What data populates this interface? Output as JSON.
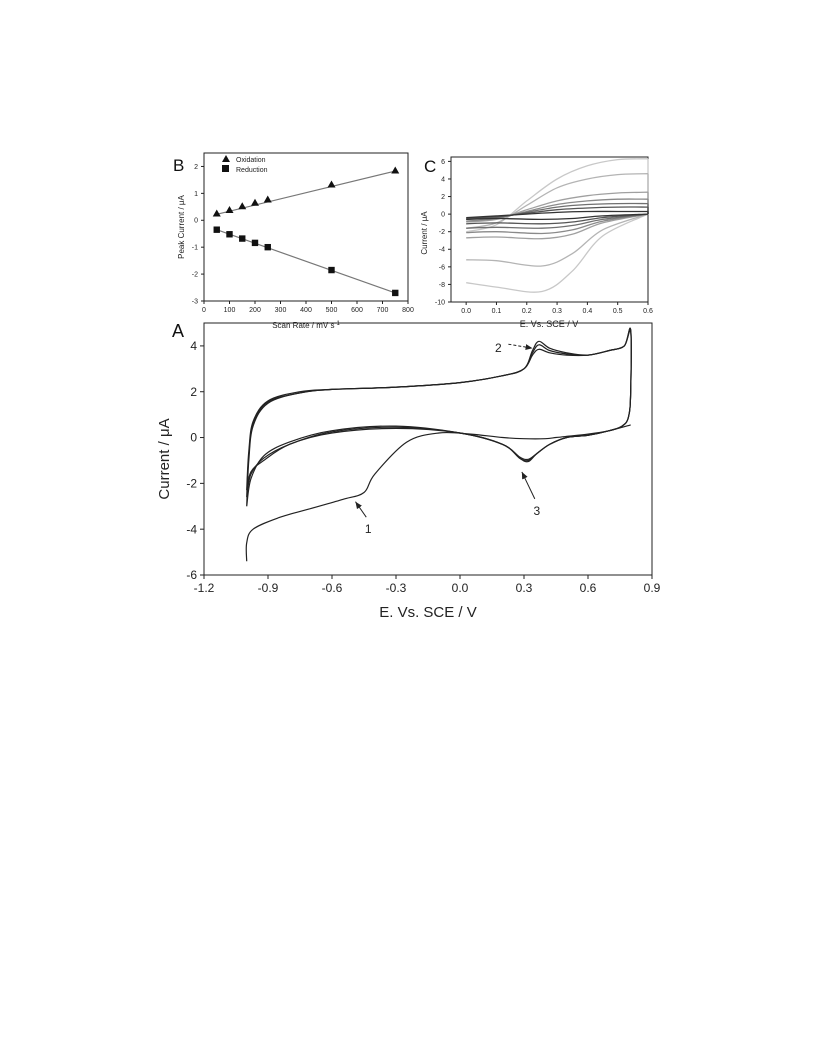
{
  "chart_data": [
    {
      "panel": "B",
      "type": "scatter",
      "xlabel": "Scan Rate / mV s",
      "xlabel_sup": "-1",
      "ylabel": "Peak Current  /  μA",
      "xlim": [
        0,
        800
      ],
      "ylim": [
        -3,
        2.5
      ],
      "xticks": [
        0,
        100,
        200,
        300,
        400,
        500,
        600,
        700,
        800
      ],
      "yticks": [
        -3,
        -2,
        -1,
        0,
        1,
        2
      ],
      "legend_position": "top-left",
      "series": [
        {
          "name": "Oxidation",
          "marker": "triangle",
          "x": [
            50,
            100,
            150,
            200,
            250,
            500,
            750
          ],
          "y": [
            0.25,
            0.38,
            0.52,
            0.65,
            0.77,
            1.33,
            1.85
          ],
          "fit": [
            [
              50,
              0.22
            ],
            [
              750,
              1.83
            ]
          ]
        },
        {
          "name": "Reduction",
          "marker": "square",
          "x": [
            50,
            100,
            150,
            200,
            250,
            500,
            750
          ],
          "y": [
            -0.35,
            -0.52,
            -0.68,
            -0.84,
            -1.0,
            -1.85,
            -2.7
          ],
          "fit": [
            [
              50,
              -0.35
            ],
            [
              750,
              -2.7
            ]
          ]
        }
      ]
    },
    {
      "panel": "C",
      "type": "line",
      "xlabel": "E. Vs. SCE  /  V",
      "ylabel": "Current  /  μA",
      "xlim": [
        -0.05,
        0.6
      ],
      "ylim": [
        -10,
        6.5
      ],
      "xticks": [
        "0.0",
        "0.1",
        "0.2",
        "0.3",
        "0.4",
        "0.5",
        "0.6"
      ],
      "yticks": [
        -10,
        -8,
        -6,
        -4,
        -2,
        0,
        2,
        4,
        6
      ],
      "curves": [
        {
          "color": "#333333",
          "top": 0.2,
          "bottom": -0.6,
          "upper_x": [
            0.0,
            0.1,
            0.2,
            0.3,
            0.4,
            0.5,
            0.6
          ],
          "upper_y": [
            -0.4,
            -0.2,
            0.0,
            0.2,
            0.3,
            0.3,
            0.3
          ],
          "lower_x": [
            0.6,
            0.45,
            0.35,
            0.25,
            0.1,
            0.0
          ],
          "lower_y": [
            0.0,
            -0.2,
            -0.5,
            -0.6,
            -0.5,
            -0.6
          ]
        },
        {
          "color": "#555555",
          "upper_x": [
            0.0,
            0.1,
            0.2,
            0.3,
            0.4,
            0.5,
            0.6
          ],
          "upper_y": [
            -0.5,
            -0.3,
            0.1,
            0.5,
            0.7,
            0.8,
            0.8
          ],
          "lower_x": [
            0.6,
            0.45,
            0.35,
            0.25,
            0.1,
            0.0
          ],
          "lower_y": [
            0.0,
            -0.4,
            -0.9,
            -1.1,
            -1.0,
            -1.1
          ]
        },
        {
          "color": "#707070",
          "upper_x": [
            0.0,
            0.1,
            0.2,
            0.3,
            0.4,
            0.5,
            0.6
          ],
          "upper_y": [
            -0.6,
            -0.4,
            0.2,
            0.8,
            1.1,
            1.2,
            1.2
          ],
          "lower_x": [
            0.6,
            0.45,
            0.35,
            0.25,
            0.1,
            0.0
          ],
          "lower_y": [
            0.0,
            -0.6,
            -1.3,
            -1.6,
            -1.5,
            -1.6
          ]
        },
        {
          "color": "#8a8a8a",
          "upper_x": [
            0.0,
            0.1,
            0.2,
            0.3,
            0.4,
            0.5,
            0.6
          ],
          "upper_y": [
            -0.8,
            -0.5,
            0.3,
            1.1,
            1.5,
            1.7,
            1.7
          ],
          "lower_x": [
            0.6,
            0.45,
            0.35,
            0.25,
            0.1,
            0.0
          ],
          "lower_y": [
            0.0,
            -0.8,
            -1.8,
            -2.2,
            -2.0,
            -2.1
          ]
        },
        {
          "color": "#a0a0a0",
          "upper_x": [
            0.0,
            0.1,
            0.2,
            0.3,
            0.4,
            0.5,
            0.6
          ],
          "upper_y": [
            -0.9,
            -0.6,
            0.5,
            1.5,
            2.1,
            2.4,
            2.5
          ],
          "lower_x": [
            0.6,
            0.45,
            0.35,
            0.25,
            0.1,
            0.0
          ],
          "lower_y": [
            0.0,
            -1.0,
            -2.3,
            -2.8,
            -2.6,
            -2.7
          ]
        },
        {
          "color": "#b4b4b4",
          "upper_x": [
            0.0,
            0.1,
            0.2,
            0.3,
            0.4,
            0.5,
            0.6
          ],
          "upper_y": [
            -1.6,
            -1.0,
            1.0,
            3.0,
            4.0,
            4.5,
            4.6
          ],
          "lower_x": [
            0.6,
            0.45,
            0.35,
            0.25,
            0.1,
            0.0
          ],
          "lower_y": [
            0.0,
            -1.8,
            -4.5,
            -5.9,
            -5.3,
            -5.2
          ]
        },
        {
          "color": "#c8c8c8",
          "upper_x": [
            0.0,
            0.1,
            0.2,
            0.3,
            0.4,
            0.5,
            0.6
          ],
          "upper_y": [
            -2.0,
            -1.2,
            1.5,
            4.0,
            5.5,
            6.2,
            6.3
          ],
          "lower_x": [
            0.6,
            0.45,
            0.35,
            0.25,
            0.1,
            0.0
          ],
          "lower_y": [
            0.0,
            -2.5,
            -6.5,
            -8.8,
            -8.3,
            -7.8
          ]
        }
      ]
    },
    {
      "panel": "A",
      "type": "line",
      "xlabel": "E. Vs. SCE  /  V",
      "ylabel": "Current  /  μA",
      "xlim": [
        -1.2,
        0.9
      ],
      "ylim": [
        -6,
        5
      ],
      "xticks": [
        "-1.2",
        "-0.9",
        "-0.6",
        "-0.3",
        "0.0",
        "0.3",
        "0.6",
        "0.9"
      ],
      "yticks": [
        -6,
        -4,
        -2,
        0,
        2,
        4
      ],
      "annotations": [
        {
          "text": "1",
          "x": -0.43,
          "y": -4.0,
          "arrow_to": [
            -0.49,
            -2.8
          ]
        },
        {
          "text": "2",
          "x": 0.18,
          "y": 3.9,
          "arrow_to": [
            0.34,
            3.9
          ]
        },
        {
          "text": "3",
          "x": 0.36,
          "y": -3.2,
          "arrow_to": [
            0.29,
            -1.5
          ]
        }
      ],
      "curves": [
        {
          "name": "cycle_1",
          "x": [
            -1.0,
            -0.99,
            -0.97,
            -0.9,
            -0.75,
            -0.6,
            -0.3,
            0.0,
            0.2,
            0.3,
            0.34,
            0.37,
            0.42,
            0.5,
            0.6,
            0.7,
            0.77,
            0.8,
            0.8,
            0.79,
            0.76,
            0.7,
            0.6,
            0.5,
            0.42,
            0.36,
            0.32,
            0.28,
            0.2,
            0.0,
            -0.3,
            -0.6,
            -0.8,
            -0.92,
            -0.98,
            -1.0
          ],
          "y": [
            -3.0,
            -1.0,
            0.5,
            1.5,
            1.95,
            2.1,
            2.2,
            2.4,
            2.7,
            3.0,
            3.6,
            3.85,
            3.7,
            3.6,
            3.6,
            3.8,
            4.0,
            4.7,
            2.0,
            0.9,
            0.5,
            0.3,
            0.1,
            0.0,
            -0.3,
            -0.7,
            -0.95,
            -0.85,
            -0.3,
            0.2,
            0.5,
            0.3,
            -0.2,
            -0.8,
            -1.8,
            -3.0
          ]
        },
        {
          "name": "cycle_2",
          "x": [
            -1.0,
            -0.99,
            -0.97,
            -0.9,
            -0.75,
            -0.6,
            -0.3,
            0.0,
            0.2,
            0.3,
            0.34,
            0.37,
            0.42,
            0.5,
            0.6,
            0.7,
            0.77,
            0.8,
            0.8,
            0.79,
            0.76,
            0.7,
            0.6,
            0.5,
            0.42,
            0.36,
            0.32,
            0.28,
            0.2,
            0.0,
            -0.3,
            -0.6,
            -0.8,
            -0.92,
            -0.98,
            -1.0
          ],
          "y": [
            -2.6,
            -0.8,
            0.6,
            1.55,
            1.95,
            2.1,
            2.2,
            2.4,
            2.7,
            3.0,
            3.7,
            4.05,
            3.8,
            3.65,
            3.6,
            3.8,
            4.0,
            4.6,
            2.0,
            0.9,
            0.5,
            0.3,
            0.1,
            0.0,
            -0.3,
            -0.7,
            -1.0,
            -0.9,
            -0.3,
            0.2,
            0.45,
            0.25,
            -0.3,
            -0.9,
            -1.6,
            -2.6
          ]
        },
        {
          "name": "cycle_3",
          "x": [
            -1.0,
            -0.99,
            -0.97,
            -0.9,
            -0.75,
            -0.6,
            -0.3,
            0.0,
            0.2,
            0.3,
            0.34,
            0.37,
            0.42,
            0.5,
            0.6,
            0.7,
            0.77,
            0.8,
            0.8,
            0.79,
            0.76,
            0.7,
            0.6,
            0.5,
            0.42,
            0.36,
            0.32,
            0.28,
            0.2,
            0.0,
            -0.3,
            -0.6,
            -0.8,
            -0.92,
            -0.98,
            -1.0
          ],
          "y": [
            -2.3,
            -0.6,
            0.7,
            1.6,
            2.0,
            2.1,
            2.2,
            2.4,
            2.7,
            3.0,
            3.8,
            4.2,
            3.9,
            3.7,
            3.6,
            3.8,
            4.0,
            4.7,
            2.0,
            0.9,
            0.5,
            0.3,
            0.1,
            0.0,
            -0.3,
            -0.7,
            -1.05,
            -0.9,
            -0.3,
            0.2,
            0.4,
            0.2,
            -0.3,
            -1.0,
            -1.5,
            -2.3
          ]
        },
        {
          "name": "first_sweep",
          "x": [
            0.8,
            0.7,
            0.6,
            0.5,
            0.45,
            0.4,
            0.3,
            0.2,
            0.05,
            -0.1,
            -0.25,
            -0.4,
            -0.45,
            -0.55,
            -0.7,
            -0.85,
            -0.97,
            -1.0,
            -1.0
          ],
          "y": [
            0.55,
            0.3,
            0.15,
            0.05,
            0.0,
            -0.05,
            -0.05,
            0.0,
            0.15,
            0.2,
            -0.2,
            -1.6,
            -2.4,
            -2.7,
            -3.1,
            -3.5,
            -4.0,
            -4.6,
            -5.4
          ]
        }
      ]
    }
  ]
}
